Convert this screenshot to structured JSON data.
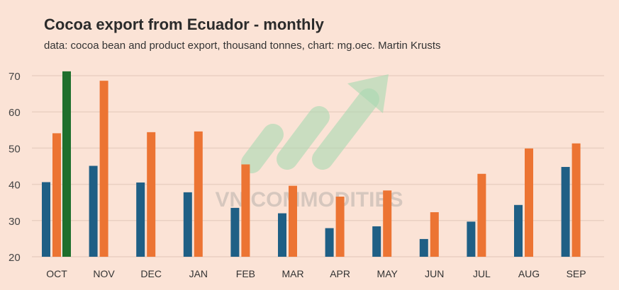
{
  "chart_data": {
    "type": "bar",
    "title": "Cocoa export from Ecuador - monthly",
    "subtitle": "data: cocoa bean and product export, thousand tonnes, chart: mg.oec. Martin Krusts",
    "categories": [
      "OCT",
      "NOV",
      "DEC",
      "JAN",
      "FEB",
      "MAR",
      "APR",
      "MAY",
      "JUN",
      "JUL",
      "AUG",
      "SEP"
    ],
    "series": [
      {
        "color": "#1f5f85",
        "values": [
          40.6,
          45.1,
          40.5,
          37.8,
          33.5,
          32.0,
          27.9,
          28.4,
          24.9,
          29.7,
          34.3,
          44.8
        ]
      },
      {
        "color": "#ec7433",
        "values": [
          54.1,
          68.6,
          54.4,
          54.6,
          45.5,
          39.6,
          36.6,
          38.3,
          32.3,
          42.9,
          49.9,
          51.3
        ]
      },
      {
        "color": "#1e6f2c",
        "values": [
          71.2,
          null,
          null,
          null,
          null,
          null,
          null,
          null,
          null,
          null,
          null,
          null
        ]
      }
    ],
    "ylim": [
      20,
      72
    ],
    "yticks": [
      20,
      30,
      40,
      50,
      60,
      70
    ],
    "grid": true,
    "watermark": "VN COMMODITIES"
  }
}
